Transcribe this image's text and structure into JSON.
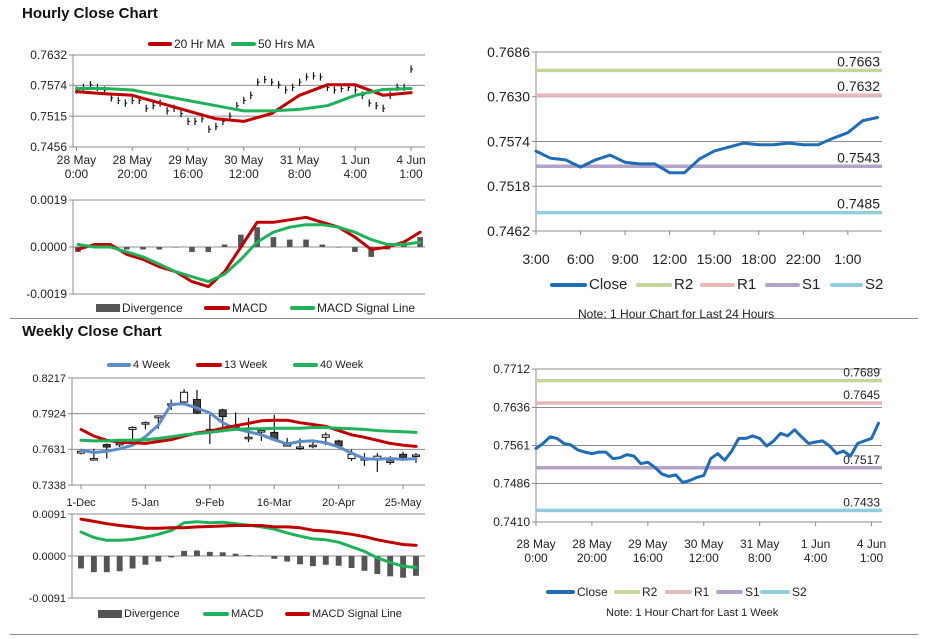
{
  "titles": {
    "hourly": "Hourly Close Chart",
    "weekly": "Weekly Close Chart"
  },
  "notes": {
    "hourly_levels": "Note: 1 Hour Chart for Last 24 Hours",
    "weekly_levels": "Note: 1 Hour Chart for Last 1 Week"
  },
  "colors": {
    "close": "#1f6db5",
    "r2": "#c3d69b",
    "r1": "#e6b9b8",
    "s1": "#b3a2c7",
    "s2": "#93cddd",
    "red": "#c00000",
    "green": "#1fb25a",
    "blue4w": "#5b8cc8",
    "divergence": "#555555"
  },
  "chart_data": [
    {
      "id": "hourly_price",
      "type": "candlestick",
      "title": "Hourly Close Chart",
      "ylim": [
        0.7456,
        0.7632
      ],
      "yticks": [
        "0.7632",
        "0.7574",
        "0.7515",
        "0.7456"
      ],
      "xticks": [
        {
          "i": 0,
          "label": [
            "28 May",
            "0:00"
          ]
        },
        {
          "i": 8,
          "label": [
            "28 May",
            "20:00"
          ]
        },
        {
          "i": 16,
          "label": [
            "29 May",
            "16:00"
          ]
        },
        {
          "i": 24,
          "label": [
            "30 May",
            "12:00"
          ]
        },
        {
          "i": 32,
          "label": [
            "31 May",
            "8:00"
          ]
        },
        {
          "i": 40,
          "label": [
            "1 Jun",
            "4:00"
          ]
        },
        {
          "i": 48,
          "label": [
            "4 Jun",
            "1:00"
          ]
        }
      ],
      "close": [
        0.7565,
        0.757,
        0.7575,
        0.757,
        0.7565,
        0.755,
        0.7545,
        0.754,
        0.7545,
        0.7545,
        0.753,
        0.7535,
        0.754,
        0.7525,
        0.753,
        0.752,
        0.7505,
        0.7505,
        0.751,
        0.749,
        0.7495,
        0.7505,
        0.7515,
        0.7535,
        0.7545,
        0.7555,
        0.758,
        0.7585,
        0.758,
        0.7575,
        0.7565,
        0.757,
        0.758,
        0.759,
        0.7592,
        0.759,
        0.757,
        0.7565,
        0.7568,
        0.757,
        0.7565,
        0.7555,
        0.754,
        0.7535,
        0.753,
        0.7555,
        0.757,
        0.757,
        0.7605
      ],
      "series": [
        {
          "name": "20 Hr MA",
          "color": "#c00000",
          "step": 4,
          "values": [
            0.7562,
            0.7558,
            0.7555,
            0.754,
            0.7525,
            0.751,
            0.7505,
            0.752,
            0.7555,
            0.7575,
            0.7575,
            0.7555,
            0.756
          ]
        },
        {
          "name": "50 Hrs MA",
          "color": "#1fb25a",
          "step": 4,
          "values": [
            0.7568,
            0.7568,
            0.7565,
            0.7555,
            0.7545,
            0.7535,
            0.7525,
            0.7525,
            0.7528,
            0.7535,
            0.7555,
            0.7566,
            0.7568
          ]
        }
      ]
    },
    {
      "id": "hourly_macd",
      "type": "macd",
      "ylim": [
        -0.0019,
        0.0019
      ],
      "yticks": [
        "0.0019",
        "0.0000",
        "-0.0019"
      ],
      "xticks": [],
      "divergence": {
        "name": "Divergence",
        "values": [
          -0.0002,
          0.0001,
          0.0001,
          -0.0001,
          -0.0001,
          -0.0001,
          0,
          -0.0002,
          -0.0002,
          0.0001,
          0.0005,
          0.0008,
          0.0004,
          0.0003,
          0.0003,
          0.0001,
          0,
          -0.0002,
          -0.0004,
          -0.0001,
          0.0001,
          0.0004
        ]
      },
      "series": [
        {
          "name": "MACD",
          "color": "#c00000",
          "step": 1,
          "values": [
            -0.0001,
            0.0001,
            0.0001,
            -0.0003,
            -0.0005,
            -0.0008,
            -0.001,
            -0.0014,
            -0.0016,
            -0.001,
            0,
            0.001,
            0.001,
            0.0011,
            0.0012,
            0.001,
            0.0008,
            0.0004,
            -0.0001,
            0,
            0.0002,
            0.0006
          ]
        },
        {
          "name": "MACD Signal Line",
          "color": "#1fb25a",
          "step": 1,
          "values": [
            0.0001,
            0,
            0,
            -0.0002,
            -0.0004,
            -0.0007,
            -0.001,
            -0.0012,
            -0.0014,
            -0.0011,
            -0.0005,
            0.0002,
            0.0006,
            0.0008,
            0.0009,
            0.0009,
            0.0008,
            0.0006,
            0.0003,
            0.0001,
            0.0001,
            0.0002
          ]
        }
      ]
    },
    {
      "id": "hourly_levels",
      "type": "line",
      "ylim": [
        0.7462,
        0.7686
      ],
      "yticks": [
        "0.7686",
        "0.7630",
        "0.7574",
        "0.7518",
        "0.7462"
      ],
      "xticks": [
        {
          "i": 0,
          "label": [
            "3:00"
          ]
        },
        {
          "i": 3,
          "label": [
            "6:00"
          ]
        },
        {
          "i": 6,
          "label": [
            "9:00"
          ]
        },
        {
          "i": 9,
          "label": [
            "12:00"
          ]
        },
        {
          "i": 12,
          "label": [
            "15:00"
          ]
        },
        {
          "i": 15,
          "label": [
            "18:00"
          ]
        },
        {
          "i": 18,
          "label": [
            "22:00"
          ]
        },
        {
          "i": 21,
          "label": [
            "1:00"
          ]
        }
      ],
      "series": [
        {
          "name": "Close",
          "color": "#1f6db5",
          "step": 1,
          "values": [
            0.7562,
            0.7553,
            0.7551,
            0.7542,
            0.7551,
            0.7557,
            0.7548,
            0.7546,
            0.7546,
            0.7535,
            0.7535,
            0.7552,
            0.7562,
            0.7567,
            0.7572,
            0.757,
            0.757,
            0.7572,
            0.757,
            0.757,
            0.7578,
            0.7585,
            0.76,
            0.7604
          ]
        }
      ],
      "levels": [
        {
          "name": "R2",
          "value": 0.7663,
          "label": "0.7663",
          "color": "#c3d69b"
        },
        {
          "name": "R1",
          "value": 0.7632,
          "label": "0.7632",
          "color": "#e6b9b8"
        },
        {
          "name": "S1",
          "value": 0.7543,
          "label": "0.7543",
          "color": "#b3a2c7"
        },
        {
          "name": "S2",
          "value": 0.7485,
          "label": "0.7485",
          "color": "#93cddd"
        }
      ]
    },
    {
      "id": "weekly_price",
      "type": "candlestick",
      "title": "Weekly Close Chart",
      "ylim": [
        0.7338,
        0.8217
      ],
      "yticks": [
        "0.8217",
        "0.7924",
        "0.7631",
        "0.7338"
      ],
      "xticks": [
        {
          "i": 0,
          "label": [
            "1-Dec"
          ]
        },
        {
          "i": 5,
          "label": [
            "5-Jan"
          ]
        },
        {
          "i": 10,
          "label": [
            "9-Feb"
          ]
        },
        {
          "i": 15,
          "label": [
            "16-Mar"
          ]
        },
        {
          "i": 20,
          "label": [
            "20-Apr"
          ]
        },
        {
          "i": 25,
          "label": [
            "25-May"
          ]
        }
      ],
      "ohlc": [
        [
          0.76,
          0.763,
          0.759,
          0.7615
        ],
        [
          0.7555,
          0.7635,
          0.7555,
          0.7555
        ],
        [
          0.767,
          0.768,
          0.7555,
          0.765
        ],
        [
          0.768,
          0.77,
          0.765,
          0.768
        ],
        [
          0.7795,
          0.782,
          0.768,
          0.781
        ],
        [
          0.7845,
          0.786,
          0.7795,
          0.785
        ],
        [
          0.789,
          0.791,
          0.78,
          0.7905
        ],
        [
          0.8005,
          0.804,
          0.7955,
          0.8005
        ],
        [
          0.802,
          0.8125,
          0.7995,
          0.81
        ],
        [
          0.804,
          0.812,
          0.792,
          0.793
        ],
        [
          0.7775,
          0.7915,
          0.7675,
          0.7795
        ],
        [
          0.7955,
          0.7965,
          0.777,
          0.79
        ],
        [
          0.7825,
          0.7935,
          0.7785,
          0.7825
        ],
        [
          0.773,
          0.789,
          0.769,
          0.773
        ],
        [
          0.7785,
          0.7805,
          0.77,
          0.7785
        ],
        [
          0.777,
          0.7915,
          0.77,
          0.771
        ],
        [
          0.767,
          0.7725,
          0.766,
          0.767
        ],
        [
          0.765,
          0.772,
          0.7625,
          0.765
        ],
        [
          0.7665,
          0.77,
          0.764,
          0.7665
        ],
        [
          0.773,
          0.777,
          0.7665,
          0.775
        ],
        [
          0.77,
          0.771,
          0.764,
          0.766
        ],
        [
          0.7555,
          0.763,
          0.7535,
          0.759
        ],
        [
          0.7555,
          0.76,
          0.7495,
          0.7555
        ],
        [
          0.7555,
          0.76,
          0.7445,
          0.7575
        ],
        [
          0.7535,
          0.7575,
          0.7505,
          0.7535
        ],
        [
          0.759,
          0.761,
          0.7535,
          0.7565
        ],
        [
          0.758,
          0.76,
          0.752,
          0.7585
        ]
      ],
      "series": [
        {
          "name": "4 Week",
          "color": "#5b8cc8",
          "step": 1,
          "values": [
            0.7625,
            0.7605,
            0.7615,
            0.7635,
            0.7665,
            0.7735,
            0.783,
            0.8,
            0.8005,
            0.797,
            0.793,
            0.785,
            0.78,
            0.7775,
            0.775,
            0.771,
            0.7675,
            0.7695,
            0.77,
            0.7685,
            0.765,
            0.76,
            0.7555,
            0.755,
            0.7555,
            0.755,
            0.7555
          ]
        },
        {
          "name": "13 Week",
          "color": "#c00000",
          "step": 1,
          "values": [
            0.7795,
            0.774,
            0.7705,
            0.769,
            0.7685,
            0.768,
            0.7695,
            0.771,
            0.774,
            0.7765,
            0.778,
            0.7805,
            0.7825,
            0.7845,
            0.7865,
            0.787,
            0.787,
            0.785,
            0.7835,
            0.782,
            0.7785,
            0.775,
            0.773,
            0.7705,
            0.768,
            0.7665,
            0.7655
          ]
        },
        {
          "name": "40 Week",
          "color": "#1fb25a",
          "step": 1,
          "values": [
            0.7705,
            0.77,
            0.77,
            0.7705,
            0.7705,
            0.771,
            0.772,
            0.7735,
            0.775,
            0.776,
            0.777,
            0.7785,
            0.7795,
            0.78,
            0.78,
            0.7805,
            0.7805,
            0.7805,
            0.781,
            0.781,
            0.7805,
            0.78,
            0.7795,
            0.7785,
            0.778,
            0.7775,
            0.777
          ]
        }
      ]
    },
    {
      "id": "weekly_macd",
      "type": "macd",
      "ylim": [
        -0.0091,
        0.0091
      ],
      "yticks": [
        "0.0091",
        "0.0000",
        "-0.0091"
      ],
      "xticks": [],
      "divergence": {
        "name": "Divergence",
        "values": [
          -0.0027,
          -0.0035,
          -0.0035,
          -0.0033,
          -0.0027,
          -0.0019,
          -0.0012,
          -0.0003,
          0.0011,
          0.0012,
          0.0009,
          0.0008,
          0.0005,
          0.0002,
          0.0001,
          -0.0006,
          -0.0012,
          -0.0018,
          -0.0022,
          -0.0019,
          -0.0021,
          -0.0026,
          -0.0032,
          -0.0039,
          -0.0044,
          -0.0047,
          -0.0043
        ]
      },
      "series": [
        {
          "name": "MACD",
          "color": "#1fb25a",
          "step": 1,
          "values": [
            0.0052,
            0.004,
            0.0034,
            0.0034,
            0.0036,
            0.0041,
            0.0047,
            0.0055,
            0.0072,
            0.0074,
            0.0072,
            0.0073,
            0.007,
            0.0067,
            0.0063,
            0.0058,
            0.005,
            0.0043,
            0.0037,
            0.0035,
            0.003,
            0.002,
            0.001,
            -0.0004,
            -0.0014,
            -0.0022,
            -0.0025
          ]
        },
        {
          "name": "MACD Signal Line",
          "color": "#c00000",
          "step": 1,
          "values": [
            0.008,
            0.0075,
            0.007,
            0.0066,
            0.0063,
            0.006,
            0.006,
            0.0061,
            0.0061,
            0.0063,
            0.0064,
            0.0065,
            0.0066,
            0.0066,
            0.0066,
            0.0063,
            0.0063,
            0.0061,
            0.0056,
            0.0054,
            0.0051,
            0.0047,
            0.0042,
            0.0035,
            0.003,
            0.0025,
            0.0023
          ]
        }
      ]
    },
    {
      "id": "weekly_levels",
      "type": "line",
      "ylim": [
        0.741,
        0.7712
      ],
      "yticks": [
        "0.7712",
        "0.7636",
        "0.7561",
        "0.7486",
        "0.7410"
      ],
      "xticks": [
        {
          "i": 0,
          "label": [
            "28 May",
            "0:00"
          ]
        },
        {
          "i": 8,
          "label": [
            "28 May",
            "20:00"
          ]
        },
        {
          "i": 16,
          "label": [
            "29 May",
            "16:00"
          ]
        },
        {
          "i": 24,
          "label": [
            "30 May",
            "12:00"
          ]
        },
        {
          "i": 32,
          "label": [
            "31 May",
            "8:00"
          ]
        },
        {
          "i": 40,
          "label": [
            "1 Jun",
            "4:00"
          ]
        },
        {
          "i": 48,
          "label": [
            "4 Jun",
            "1:00"
          ]
        }
      ],
      "series": [
        {
          "name": "Close",
          "color": "#1f6db5",
          "step": 1,
          "values": [
            0.7555,
            0.7565,
            0.7578,
            0.7575,
            0.7565,
            0.7562,
            0.7552,
            0.7548,
            0.7545,
            0.7548,
            0.7548,
            0.7535,
            0.7537,
            0.7543,
            0.754,
            0.7525,
            0.7528,
            0.7518,
            0.7505,
            0.75,
            0.7503,
            0.7488,
            0.7492,
            0.7498,
            0.7502,
            0.7535,
            0.7545,
            0.7532,
            0.755,
            0.7575,
            0.7575,
            0.758,
            0.7575,
            0.756,
            0.757,
            0.7585,
            0.758,
            0.7592,
            0.7578,
            0.7565,
            0.7568,
            0.757,
            0.756,
            0.7545,
            0.755,
            0.754,
            0.7565,
            0.757,
            0.7575,
            0.7605
          ]
        }
      ],
      "levels": [
        {
          "name": "R2",
          "value": 0.7689,
          "label": "0.7689",
          "color": "#c3d69b"
        },
        {
          "name": "R1",
          "value": 0.7645,
          "label": "0.7645",
          "color": "#e6b9b8"
        },
        {
          "name": "S1",
          "value": 0.7517,
          "label": "0.7517",
          "color": "#b3a2c7"
        },
        {
          "name": "S2",
          "value": 0.7433,
          "label": "0.7433",
          "color": "#93cddd"
        }
      ]
    }
  ]
}
